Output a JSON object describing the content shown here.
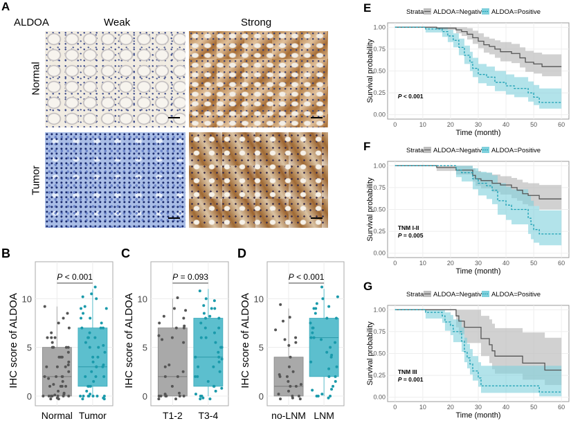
{
  "panelA": {
    "letter": "A",
    "marker_label": "ALDOA",
    "col_headers": [
      "Weak",
      "Strong"
    ],
    "row_headers": [
      "Normal",
      "Tumor"
    ],
    "image_content": [
      "Normal tissue, weak ALDOA staining",
      "Normal tissue, strong ALDOA staining",
      "Tumor tissue, weak ALDOA staining",
      "Tumor tissue, strong ALDOA staining"
    ]
  },
  "colors": {
    "negative_box": "#a9a9a9",
    "negative_point": "#555555",
    "positive_box": "#5cbfce",
    "positive_point": "#1a9aab",
    "km_negative_line": "#555555",
    "km_negative_band": "#bdbdbd",
    "km_positive_line": "#1a9fb3",
    "km_positive_band": "#7fd0dc"
  },
  "chart_data": [
    {
      "id": "B",
      "letter": "B",
      "type": "box",
      "ylabel": "IHC score of ALDOA",
      "ylim": [
        -1,
        13.8
      ],
      "yticks": [
        "0",
        "5",
        "10"
      ],
      "grid": true,
      "pvalue_label": "P",
      "pvalue_text": " < 0.001",
      "categories": [
        "Normal",
        "Tumor"
      ],
      "boxes": [
        {
          "q1": 0,
          "median": 2,
          "q3": 5,
          "lower": 0,
          "upper": 9.2,
          "points": [
            0,
            0,
            0,
            0,
            0,
            0,
            0,
            0.2,
            0.3,
            0.5,
            1,
            1,
            1,
            1,
            1.2,
            1.5,
            2,
            2,
            2,
            2,
            2.5,
            3,
            3,
            3,
            3.5,
            4,
            4,
            4,
            4.5,
            5,
            5,
            5,
            5,
            5.5,
            6,
            6,
            6,
            6.5,
            7,
            7.5,
            8,
            8.5,
            9.2,
            -0.3,
            -0.3,
            -0.2,
            0.1,
            1.8,
            3.2
          ]
        },
        {
          "q1": 1,
          "median": 3,
          "q3": 7,
          "lower": 0,
          "upper": 11,
          "points": [
            0,
            0,
            0,
            0,
            0,
            0,
            0,
            0.2,
            0.5,
            1,
            1,
            1,
            1.5,
            2,
            2,
            2,
            2.5,
            3,
            3,
            3,
            3.5,
            4,
            4,
            4.5,
            5,
            5,
            5.5,
            6,
            6,
            6,
            6.5,
            7,
            7,
            7,
            7.5,
            8,
            8,
            8.5,
            9,
            9,
            9.2,
            10,
            10.2,
            10.5,
            11.2,
            -0.3,
            -0.3,
            -0.2,
            3.2,
            5.2
          ]
        }
      ]
    },
    {
      "id": "C",
      "letter": "C",
      "type": "box",
      "ylabel": "IHC score of ALDOA",
      "ylim": [
        -1,
        13.8
      ],
      "yticks": [
        "0",
        "5",
        "10"
      ],
      "grid": true,
      "pvalue_label": "P",
      "pvalue_text": " = 0.093",
      "categories": [
        "T1-2",
        "T3-4"
      ],
      "boxes": [
        {
          "q1": 0,
          "median": 2,
          "q3": 7,
          "lower": 0,
          "upper": 10,
          "points": [
            0,
            0,
            0,
            0,
            0,
            0,
            -0.3,
            -0.3,
            0.2,
            0.3,
            1,
            2,
            2,
            2.5,
            3,
            3.2,
            5.5,
            5.8,
            6,
            6.2,
            7,
            7,
            7.2,
            7.5,
            8,
            8.2,
            8.8,
            9,
            10.1
          ]
        },
        {
          "q1": 1,
          "median": 4,
          "q3": 8,
          "lower": 0,
          "upper": 11,
          "points": [
            0,
            0,
            -0.3,
            -0.3,
            0.2,
            0.5,
            1,
            1,
            1.5,
            2,
            2,
            2.5,
            3,
            3,
            3.5,
            4,
            4,
            4.5,
            5,
            5,
            5.5,
            6,
            6,
            6.5,
            7,
            7,
            7.5,
            8,
            8,
            8.2,
            8.5,
            9,
            9,
            9.3,
            9.8,
            10,
            10.8,
            -0.2,
            0.8,
            3.8
          ]
        }
      ]
    },
    {
      "id": "D",
      "letter": "D",
      "type": "box",
      "ylabel": "IHC score of ALDOA",
      "ylim": [
        -1,
        13.8
      ],
      "yticks": [
        "0",
        "5",
        "10"
      ],
      "grid": true,
      "pvalue_label": "P",
      "pvalue_text": " < 0.001",
      "categories": [
        "no-LNM",
        "LNM"
      ],
      "boxes": [
        {
          "q1": 0,
          "median": 1,
          "q3": 4,
          "lower": 0,
          "upper": 9,
          "points": [
            0,
            0,
            -0.3,
            -0.3,
            -0.2,
            0.2,
            0.5,
            1,
            1,
            1.2,
            1.5,
            2,
            2,
            2.2,
            2.5,
            3,
            4,
            5.2,
            5.5,
            5.8,
            6,
            6.8,
            7.7,
            8.1,
            9.4
          ]
        },
        {
          "q1": 2,
          "median": 6,
          "q3": 8,
          "lower": 0,
          "upper": 11,
          "points": [
            0,
            0,
            0,
            -0.2,
            0.2,
            0.6,
            0.7,
            1,
            1.5,
            2,
            2,
            3,
            3.5,
            4,
            4.5,
            5,
            5.5,
            6,
            6,
            6.5,
            7,
            7,
            7.5,
            8,
            8,
            8.5,
            9,
            9,
            9.2,
            9.5,
            10,
            10.2,
            11.2,
            2.8,
            4.2,
            5.8
          ]
        }
      ]
    },
    {
      "id": "E",
      "letter": "E",
      "type": "line",
      "xlabel": "Time (month)",
      "ylabel": "Survival probability",
      "xlim": [
        -2.7,
        62.7
      ],
      "ylim": [
        -0.05,
        1.05
      ],
      "xticks": [
        0,
        10,
        20,
        30,
        40,
        50,
        60
      ],
      "yticks": [
        "0.00",
        "0.25",
        "0.50",
        "0.75",
        "1.00"
      ],
      "grid": true,
      "legend_title": "Strata",
      "legend_position": "top",
      "annotation_lines": [],
      "annotation_p_label": "P",
      "annotation_p_text": " < 0.001",
      "series": [
        {
          "name": "ALDOA=Negative",
          "line_style": "solid",
          "time": [
            0,
            15,
            22,
            24,
            26,
            28,
            30,
            32,
            34,
            36,
            38,
            42,
            45,
            47,
            50,
            53,
            60
          ],
          "survival": [
            1,
            0.99,
            0.97,
            0.95,
            0.92,
            0.88,
            0.84,
            0.8,
            0.78,
            0.75,
            0.72,
            0.7,
            0.65,
            0.6,
            0.58,
            0.55,
            0.55
          ],
          "lower": [
            1,
            0.97,
            0.93,
            0.9,
            0.86,
            0.81,
            0.76,
            0.71,
            0.69,
            0.65,
            0.61,
            0.59,
            0.54,
            0.49,
            0.47,
            0.44,
            0.44
          ],
          "upper": [
            1,
            1,
            1,
            1,
            0.99,
            0.96,
            0.93,
            0.89,
            0.87,
            0.85,
            0.83,
            0.81,
            0.77,
            0.73,
            0.71,
            0.69,
            0.69
          ]
        },
        {
          "name": "ALDOA=Positive",
          "line_style": "dashed",
          "time": [
            0,
            11,
            17,
            19,
            21,
            23,
            25,
            27,
            28,
            30,
            33,
            36,
            40,
            43,
            48,
            50,
            52,
            60
          ],
          "survival": [
            1,
            0.98,
            0.95,
            0.9,
            0.85,
            0.77,
            0.68,
            0.6,
            0.53,
            0.46,
            0.43,
            0.37,
            0.33,
            0.3,
            0.25,
            0.2,
            0.14,
            0.14
          ],
          "lower": [
            1,
            0.94,
            0.89,
            0.83,
            0.77,
            0.68,
            0.58,
            0.5,
            0.43,
            0.36,
            0.33,
            0.27,
            0.23,
            0.2,
            0.15,
            0.11,
            0.07,
            0.07
          ],
          "upper": [
            1,
            1,
            1,
            0.97,
            0.93,
            0.87,
            0.79,
            0.72,
            0.65,
            0.58,
            0.55,
            0.5,
            0.46,
            0.43,
            0.38,
            0.34,
            0.3,
            0.3
          ]
        }
      ]
    },
    {
      "id": "F",
      "letter": "F",
      "type": "line",
      "xlabel": "Time (month)",
      "ylabel": "Survival probability",
      "xlim": [
        -2.7,
        62.7
      ],
      "ylim": [
        -0.05,
        1.05
      ],
      "xticks": [
        0,
        10,
        20,
        30,
        40,
        50,
        60
      ],
      "yticks": [
        "0.00",
        "0.25",
        "0.50",
        "0.75",
        "1.00"
      ],
      "grid": true,
      "legend_title": "Strata",
      "legend_position": "top",
      "annotation_lines": [
        "TNM I-II"
      ],
      "annotation_p_label": "P",
      "annotation_p_text": " = 0.005",
      "series": [
        {
          "name": "ALDOA=Negative",
          "line_style": "solid",
          "time": [
            0,
            15,
            22,
            28,
            29,
            31,
            35,
            38,
            42,
            44,
            46,
            48,
            52,
            60
          ],
          "survival": [
            1,
            0.98,
            0.95,
            0.89,
            0.85,
            0.83,
            0.8,
            0.78,
            0.75,
            0.72,
            0.68,
            0.66,
            0.62,
            0.62
          ],
          "lower": [
            1,
            0.94,
            0.9,
            0.82,
            0.77,
            0.74,
            0.7,
            0.67,
            0.63,
            0.6,
            0.56,
            0.54,
            0.5,
            0.5
          ],
          "upper": [
            1,
            1,
            1,
            0.97,
            0.94,
            0.92,
            0.9,
            0.88,
            0.86,
            0.84,
            0.81,
            0.8,
            0.78,
            0.78
          ]
        },
        {
          "name": "ALDOA=Positive",
          "line_style": "dashed",
          "time": [
            0,
            15,
            22,
            24,
            28,
            30,
            33,
            35,
            37,
            40,
            42,
            48,
            49,
            50,
            52,
            60
          ],
          "survival": [
            1,
            1,
            0.95,
            0.92,
            0.85,
            0.8,
            0.77,
            0.72,
            0.6,
            0.55,
            0.5,
            0.4,
            0.33,
            0.27,
            0.22,
            0.22
          ],
          "lower": [
            1,
            1,
            0.87,
            0.82,
            0.73,
            0.66,
            0.62,
            0.56,
            0.44,
            0.38,
            0.33,
            0.22,
            0.16,
            0.12,
            0.09,
            0.09
          ],
          "upper": [
            1,
            1,
            1,
            1,
            0.97,
            0.93,
            0.92,
            0.89,
            0.8,
            0.76,
            0.73,
            0.66,
            0.6,
            0.54,
            0.49,
            0.49
          ]
        }
      ]
    },
    {
      "id": "G",
      "letter": "G",
      "type": "line",
      "xlabel": "Time (month)",
      "ylabel": "Survival probability",
      "xlim": [
        -2.7,
        62.7
      ],
      "ylim": [
        -0.05,
        1.05
      ],
      "xticks": [
        0,
        10,
        20,
        30,
        40,
        50,
        60
      ],
      "yticks": [
        "0.00",
        "0.25",
        "0.50",
        "0.75",
        "1.00"
      ],
      "grid": true,
      "legend_title": "Strata",
      "legend_position": "top",
      "annotation_lines": [
        "TNM III"
      ],
      "annotation_p_label": "P",
      "annotation_p_text": " = 0.001",
      "series": [
        {
          "name": "ALDOA=Negative",
          "line_style": "solid",
          "time": [
            0,
            22,
            23,
            25,
            27,
            31,
            34,
            35,
            36,
            46,
            54,
            60
          ],
          "survival": [
            1,
            0.93,
            0.87,
            0.8,
            0.8,
            0.67,
            0.6,
            0.53,
            0.47,
            0.39,
            0.31,
            0.31
          ],
          "lower": [
            1,
            0.8,
            0.72,
            0.62,
            0.62,
            0.47,
            0.39,
            0.32,
            0.27,
            0.2,
            0.14,
            0.14
          ],
          "upper": [
            1,
            1,
            1,
            1,
            1,
            0.93,
            0.89,
            0.84,
            0.79,
            0.74,
            0.68,
            0.68
          ]
        },
        {
          "name": "ALDOA=Positive",
          "line_style": "dashed",
          "time": [
            0,
            11,
            17,
            18,
            20,
            21,
            24,
            25,
            26,
            27,
            28,
            30,
            31,
            52,
            60
          ],
          "survival": [
            1,
            0.97,
            0.93,
            0.86,
            0.82,
            0.75,
            0.64,
            0.52,
            0.45,
            0.38,
            0.3,
            0.22,
            0.13,
            0.06,
            0.06
          ],
          "lower": [
            1,
            0.9,
            0.85,
            0.76,
            0.71,
            0.63,
            0.52,
            0.4,
            0.33,
            0.26,
            0.19,
            0.12,
            0.05,
            0.01,
            0.01
          ],
          "upper": [
            1,
            1,
            1,
            0.97,
            0.94,
            0.89,
            0.8,
            0.68,
            0.61,
            0.55,
            0.47,
            0.4,
            0.36,
            0.36,
            0.36
          ]
        }
      ]
    }
  ]
}
